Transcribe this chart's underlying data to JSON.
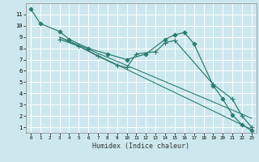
{
  "xlabel": "Humidex (Indice chaleur)",
  "bg_color": "#cce8ee",
  "grid_color": "#ffffff",
  "line_color": "#2d7d6e",
  "xlim": [
    -0.5,
    23.5
  ],
  "ylim": [
    0.5,
    12.0
  ],
  "xticks": [
    0,
    1,
    2,
    3,
    4,
    5,
    6,
    7,
    8,
    9,
    10,
    11,
    12,
    13,
    14,
    15,
    16,
    17,
    18,
    19,
    20,
    21,
    22,
    23
  ],
  "yticks": [
    1,
    2,
    3,
    4,
    5,
    6,
    7,
    8,
    9,
    10,
    11
  ],
  "series": [
    {
      "x": [
        0,
        1,
        3,
        4,
        6,
        8,
        10,
        12,
        14,
        15,
        16,
        17,
        19,
        20,
        21,
        22,
        23
      ],
      "y": [
        11.5,
        10.2,
        9.5,
        8.8,
        8.0,
        7.5,
        7.0,
        7.5,
        8.8,
        9.2,
        9.4,
        8.4,
        4.7,
        3.5,
        2.1,
        1.2,
        0.7
      ],
      "marker": "D",
      "markersize": 2.5,
      "lw": 0.9
    },
    {
      "x": [
        3,
        5,
        7,
        9,
        10,
        11,
        13,
        14,
        15,
        19,
        21,
        22,
        23
      ],
      "y": [
        8.8,
        8.2,
        7.3,
        6.5,
        6.3,
        7.5,
        7.7,
        8.5,
        8.7,
        4.8,
        3.5,
        2.0,
        1.0
      ],
      "marker": "+",
      "markersize": 5,
      "lw": 0.9
    },
    {
      "x": [
        3,
        23
      ],
      "y": [
        9.0,
        0.8
      ],
      "marker": null,
      "markersize": 0,
      "lw": 0.8
    },
    {
      "x": [
        3,
        23
      ],
      "y": [
        9.0,
        1.8
      ],
      "marker": null,
      "markersize": 0,
      "lw": 0.8
    }
  ]
}
